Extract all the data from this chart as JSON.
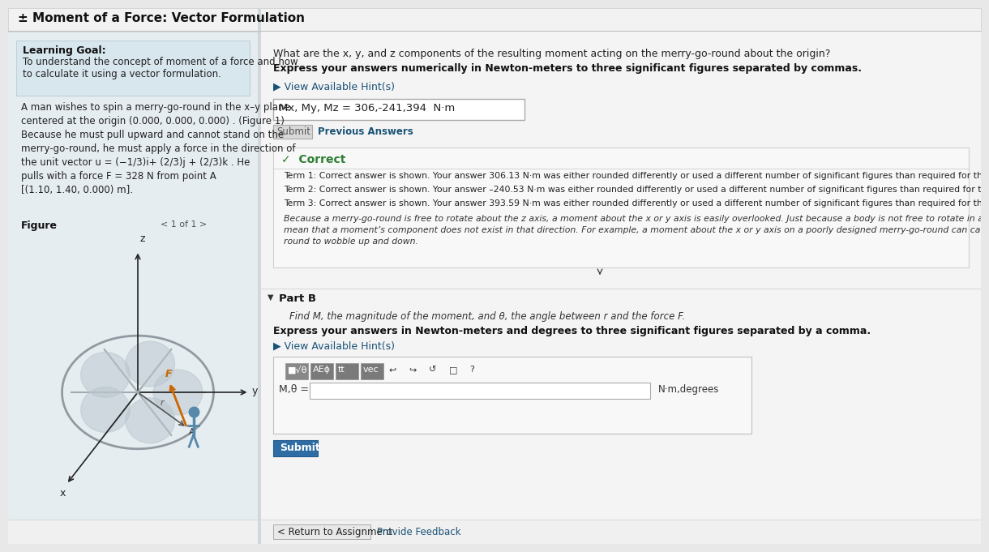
{
  "title": "± Moment of a Force: Vector Formulation",
  "bg_page": "#e8e8e8",
  "bg_left": "#e2eaee",
  "bg_right": "#f0f0f0",
  "bg_title": "#f5f5f5",
  "learning_goal_title": "Learning Goal:",
  "learning_goal_text": "To understand the concept of moment of a force and how\nto calculate it using a vector formulation.",
  "problem_text_lines": [
    "A man wishes to spin a merry-go-round in the x–y plane",
    "centered at the origin (0.000, 0.000, 0.000) . (Figure 1)",
    "Because he must pull upward and cannot stand on the",
    "merry-go-round, he must apply a force in the direction of",
    "the unit vector u = (−1/3)i+ (2/3)j + (2/3)k . He",
    "pulls with a force F = 328 N from point A",
    "[(1.10, 1.40, 0.000) m]."
  ],
  "figure_label": "Figure",
  "figure_nav": "< 1 of 1 >",
  "question_line1": "What are the x, y, and z components of the resulting moment acting on the merry-go-round about the origin?",
  "question_line2": "Express your answers numerically in Newton-meters to three significant figures separated by commas.",
  "hint_text": "▶ View Available Hint(s)",
  "answer_text": "Mx, My, Mz = 306,-241,394  N·m",
  "submit_text": "Submit",
  "prev_answers_text": "Previous Answers",
  "correct_header": "✓  Correct",
  "term1": "Term 1: Correct answer is shown. Your answer 306.13 N·m was either rounded differently or used a different number of significant figures than required for this part.",
  "term2": "Term 2: Correct answer is shown. Your answer –240.53 N·m was either rounded differently or used a different number of significant figures than required for this part.",
  "term3": "Term 3: Correct answer is shown. Your answer 393.59 N·m was either rounded differently or used a different number of significant figures than required for this part.",
  "note_lines": [
    "Because a merry-go-round is free to rotate about the z axis, a moment about the x or y axis is easily overlooked. Just because a body is not free to rotate in a direction do",
    "mean that a moment’s component does not exist in that direction. For example, a moment about the x or y axis on a poorly designed merry-go-round can cause the merry",
    "round to wobble up and down."
  ],
  "partb_label": "Part B",
  "partb_find": "Find M, the magnitude of the moment, and θ, the angle between r and the force F.",
  "partb_express": "Express your answers in Newton-meters and degrees to three significant figures separated by a comma.",
  "partb_hint": "▶ View Available Hint(s)",
  "partb_answer_label": "M,θ =",
  "partb_unit": "N·m,degrees",
  "partb_submit": "Submit",
  "return_link": "< Return to Assignment",
  "feedback_link": "Provide Feedback",
  "color_green": "#2d7d32",
  "color_blue_link": "#1a5276",
  "color_text": "#1a1a1a",
  "color_text_light": "#444444",
  "color_italic": "#333333"
}
